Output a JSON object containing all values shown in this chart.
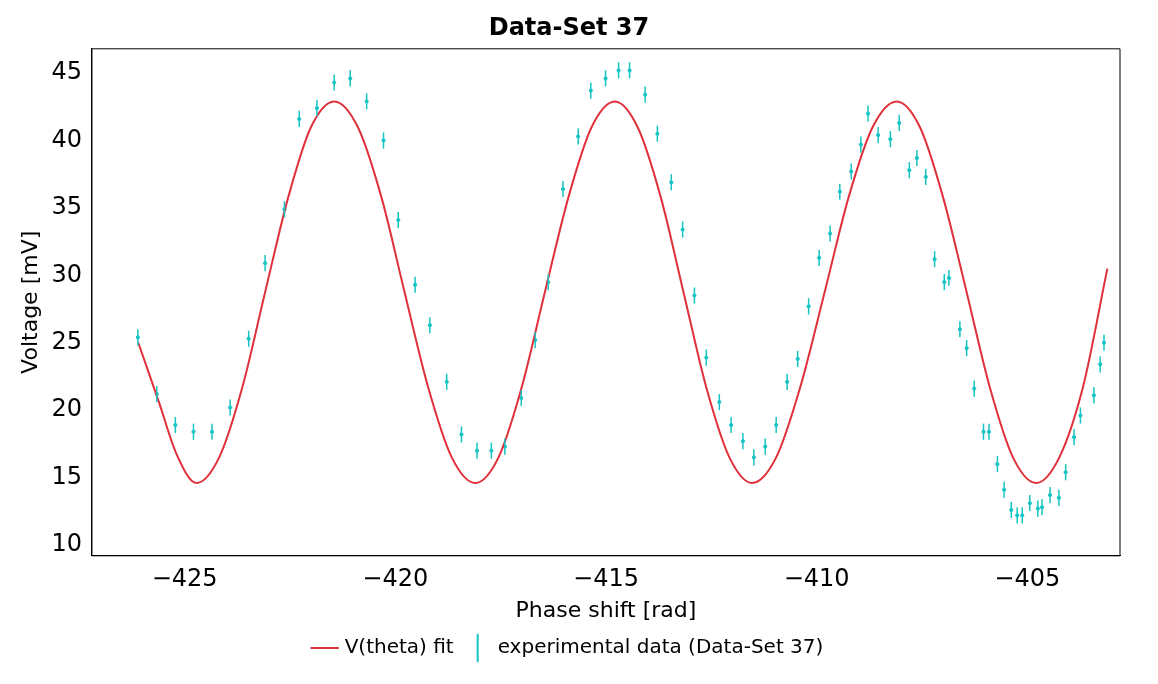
{
  "chart_data": {
    "type": "scatter",
    "title": "Data-Set 37",
    "xlabel": "Phase shift [rad]",
    "ylabel": "Voltage [mV]",
    "xlim": [
      -427.2,
      -402.8
    ],
    "xticks": [
      -425,
      -420,
      -415,
      -410,
      -405
    ],
    "ylim": [
      9.2,
      46.8
    ],
    "yticks": [
      10,
      15,
      20,
      25,
      30,
      35,
      40,
      45
    ],
    "grid": false,
    "legend": "bottom",
    "series": [
      {
        "name": "V(theta) fit",
        "type": "line",
        "marker": "none",
        "color": "#e0303a",
        "x": [
          -426.1,
          -425.6,
          -425.2,
          -424.72,
          -424.18,
          -423.63,
          -423.09,
          -422.54,
          -422.0,
          -421.45,
          -420.89,
          -420.33,
          -419.78,
          -419.22,
          -418.66,
          -418.1,
          -417.55,
          -417.0,
          -416.45,
          -415.89,
          -415.34,
          -414.79,
          -414.25,
          -413.7,
          -413.16,
          -412.62,
          -412.07,
          -411.53,
          -410.96,
          -410.39,
          -409.81,
          -409.24,
          -408.67,
          -408.1,
          -407.55,
          -407.0,
          -406.44,
          -405.89,
          -405.34,
          -404.79,
          -404.24,
          -403.68,
          -403.1
        ],
        "values": [
          25.0,
          20.5,
          16.8,
          14.6,
          16.5,
          21.7,
          28.75,
          35.8,
          41.0,
          42.9,
          41.0,
          35.8,
          28.75,
          21.7,
          16.5,
          14.6,
          16.5,
          21.7,
          28.75,
          35.8,
          41.0,
          42.9,
          41.0,
          35.8,
          28.75,
          21.7,
          16.5,
          14.6,
          16.5,
          21.7,
          28.75,
          35.8,
          41.0,
          42.9,
          41.0,
          35.8,
          28.75,
          21.7,
          16.5,
          14.6,
          16.5,
          21.7,
          30.5
        ]
      },
      {
        "name": "experimental data (Data-Set 37)",
        "type": "scatter",
        "marker": "circle",
        "color": "#17c4c4",
        "x": [
          -426.11,
          -425.66,
          -425.22,
          -424.79,
          -424.35,
          -423.92,
          -423.48,
          -423.09,
          -422.63,
          -422.28,
          -421.86,
          -421.45,
          -421.07,
          -420.68,
          -420.28,
          -419.93,
          -419.53,
          -419.18,
          -418.78,
          -418.43,
          -418.06,
          -417.72,
          -417.4,
          -417.01,
          -416.68,
          -416.37,
          -416.02,
          -415.66,
          -415.36,
          -415.01,
          -414.7,
          -414.44,
          -414.07,
          -413.78,
          -413.45,
          -413.18,
          -412.9,
          -412.62,
          -412.31,
          -412.03,
          -411.75,
          -411.49,
          -411.22,
          -410.96,
          -410.7,
          -410.45,
          -410.19,
          -409.94,
          -409.68,
          -409.45,
          -409.18,
          -408.95,
          -408.78,
          -408.54,
          -408.25,
          -408.04,
          -407.8,
          -407.62,
          -407.41,
          -407.2,
          -406.97,
          -406.86,
          -406.6,
          -406.44,
          -406.26,
          -406.04,
          -405.91,
          -405.71,
          -405.55,
          -405.38,
          -405.24,
          -405.12,
          -404.94,
          -404.75,
          -404.65,
          -404.46,
          -404.25,
          -404.09,
          -403.89,
          -403.74,
          -403.42,
          -403.27,
          -403.18
        ],
        "values": [
          25.4,
          21.2,
          18.9,
          18.4,
          18.4,
          20.2,
          25.3,
          30.9,
          34.9,
          41.6,
          42.4,
          44.3,
          44.6,
          42.9,
          40.0,
          34.1,
          29.3,
          26.3,
          22.1,
          18.2,
          17.0,
          17.0,
          17.3,
          20.9,
          25.2,
          29.5,
          36.4,
          40.3,
          43.7,
          44.6,
          45.2,
          45.2,
          43.4,
          40.5,
          36.9,
          33.4,
          28.5,
          23.9,
          20.6,
          18.9,
          17.7,
          16.5,
          17.3,
          18.9,
          22.1,
          23.8,
          27.7,
          31.3,
          33.1,
          36.2,
          37.7,
          39.7,
          42.0,
          40.4,
          40.1,
          41.3,
          37.8,
          38.7,
          37.3,
          31.2,
          29.5,
          29.8,
          26.0,
          24.6,
          21.6,
          18.4,
          18.4,
          16.0,
          14.1,
          12.6,
          12.2,
          12.2,
          13.1,
          12.7,
          12.8,
          13.7,
          13.5,
          15.4,
          18.0,
          19.6,
          21.1,
          23.4,
          25.0
        ],
        "errors": [
          0.6,
          0.6,
          0.6,
          0.6,
          0.6,
          0.6,
          0.6,
          0.6,
          0.6,
          0.6,
          0.6,
          0.6,
          0.6,
          0.6,
          0.6,
          0.6,
          0.6,
          0.6,
          0.6,
          0.6,
          0.6,
          0.6,
          0.6,
          0.6,
          0.6,
          0.6,
          0.6,
          0.6,
          0.6,
          0.6,
          0.6,
          0.6,
          0.6,
          0.6,
          0.6,
          0.6,
          0.6,
          0.6,
          0.6,
          0.6,
          0.6,
          0.6,
          0.6,
          0.6,
          0.6,
          0.6,
          0.6,
          0.6,
          0.6,
          0.6,
          0.6,
          0.6,
          0.6,
          0.6,
          0.6,
          0.6,
          0.6,
          0.6,
          0.6,
          0.6,
          0.6,
          0.6,
          0.6,
          0.6,
          0.6,
          0.6,
          0.6,
          0.6,
          0.6,
          0.6,
          0.6,
          0.6,
          0.6,
          0.6,
          0.6,
          0.6,
          0.6,
          0.6,
          0.6,
          0.6,
          0.6,
          0.6,
          0.6
        ]
      }
    ]
  }
}
